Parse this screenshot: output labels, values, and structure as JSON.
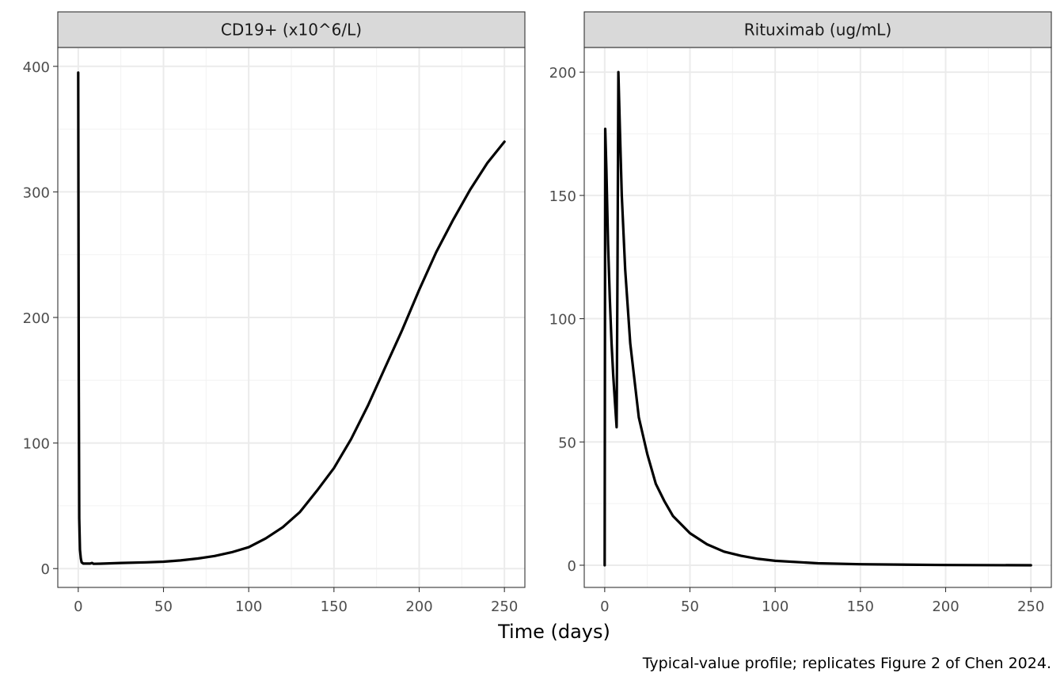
{
  "chart_data": [
    {
      "type": "line",
      "panel": "CD19+ (x10^6/L)",
      "xlim": [
        -12,
        262
      ],
      "ylim": [
        -15,
        415
      ],
      "x_ticks": [
        0,
        50,
        100,
        150,
        200,
        250
      ],
      "y_ticks": [
        0,
        100,
        200,
        300,
        400
      ],
      "grid": true,
      "series": [
        {
          "color": "#000000",
          "points": [
            [
              0,
              395
            ],
            [
              0.3,
              150
            ],
            [
              0.6,
              40
            ],
            [
              1,
              15
            ],
            [
              1.5,
              8
            ],
            [
              2,
              5
            ],
            [
              3,
              4
            ],
            [
              7,
              4
            ],
            [
              8,
              4.5
            ],
            [
              9,
              3.8
            ],
            [
              15,
              4
            ],
            [
              25,
              4.5
            ],
            [
              40,
              5
            ],
            [
              50,
              5.5
            ],
            [
              60,
              6.5
            ],
            [
              70,
              8
            ],
            [
              80,
              10
            ],
            [
              90,
              13
            ],
            [
              100,
              17
            ],
            [
              110,
              24
            ],
            [
              120,
              33
            ],
            [
              130,
              45
            ],
            [
              140,
              62
            ],
            [
              150,
              80
            ],
            [
              160,
              103
            ],
            [
              170,
              130
            ],
            [
              180,
              160
            ],
            [
              190,
              190
            ],
            [
              200,
              222
            ],
            [
              210,
              252
            ],
            [
              220,
              278
            ],
            [
              230,
              302
            ],
            [
              240,
              323
            ],
            [
              250,
              340
            ]
          ]
        }
      ]
    },
    {
      "type": "line",
      "panel": "Rituximab (ug/mL)",
      "xlim": [
        -12,
        262
      ],
      "ylim": [
        -9,
        210
      ],
      "x_ticks": [
        0,
        50,
        100,
        150,
        200,
        250
      ],
      "y_ticks": [
        0,
        50,
        100,
        150,
        200
      ],
      "grid": true,
      "series": [
        {
          "color": "#000000",
          "points": [
            [
              0,
              0
            ],
            [
              0.3,
              177
            ],
            [
              1,
              160
            ],
            [
              2,
              130
            ],
            [
              3,
              108
            ],
            [
              4,
              90
            ],
            [
              5,
              77
            ],
            [
              6,
              66
            ],
            [
              7,
              56
            ],
            [
              7.5,
              120
            ],
            [
              8,
              200
            ],
            [
              9,
              175
            ],
            [
              10,
              150
            ],
            [
              12,
              120
            ],
            [
              15,
              90
            ],
            [
              20,
              60
            ],
            [
              25,
              45
            ],
            [
              30,
              33
            ],
            [
              35,
              26
            ],
            [
              40,
              20
            ],
            [
              50,
              13
            ],
            [
              60,
              8.5
            ],
            [
              70,
              5.5
            ],
            [
              80,
              3.8
            ],
            [
              90,
              2.6
            ],
            [
              100,
              1.8
            ],
            [
              125,
              0.8
            ],
            [
              150,
              0.4
            ],
            [
              200,
              0.1
            ],
            [
              250,
              0
            ]
          ]
        }
      ]
    }
  ],
  "xlabel": "Time (days)",
  "caption": "Typical-value profile; replicates Figure 2 of Chen 2024."
}
